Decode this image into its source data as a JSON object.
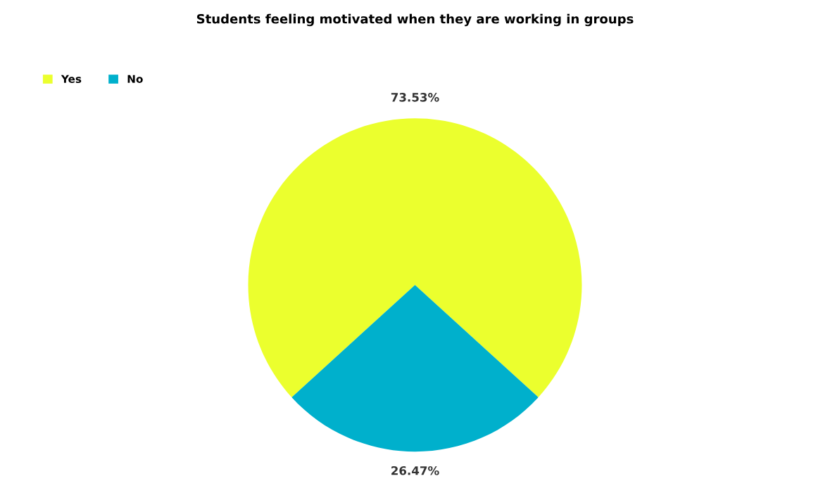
{
  "chart_data": {
    "type": "pie",
    "title": "Students feeling motivated when they are working in groups",
    "categories": [
      "Yes",
      "No"
    ],
    "values": [
      73.53,
      26.47
    ],
    "colors": [
      "#ebff2e",
      "#00b0cc"
    ],
    "value_labels": [
      "73.53%",
      "26.47%"
    ],
    "legend": "top left"
  }
}
